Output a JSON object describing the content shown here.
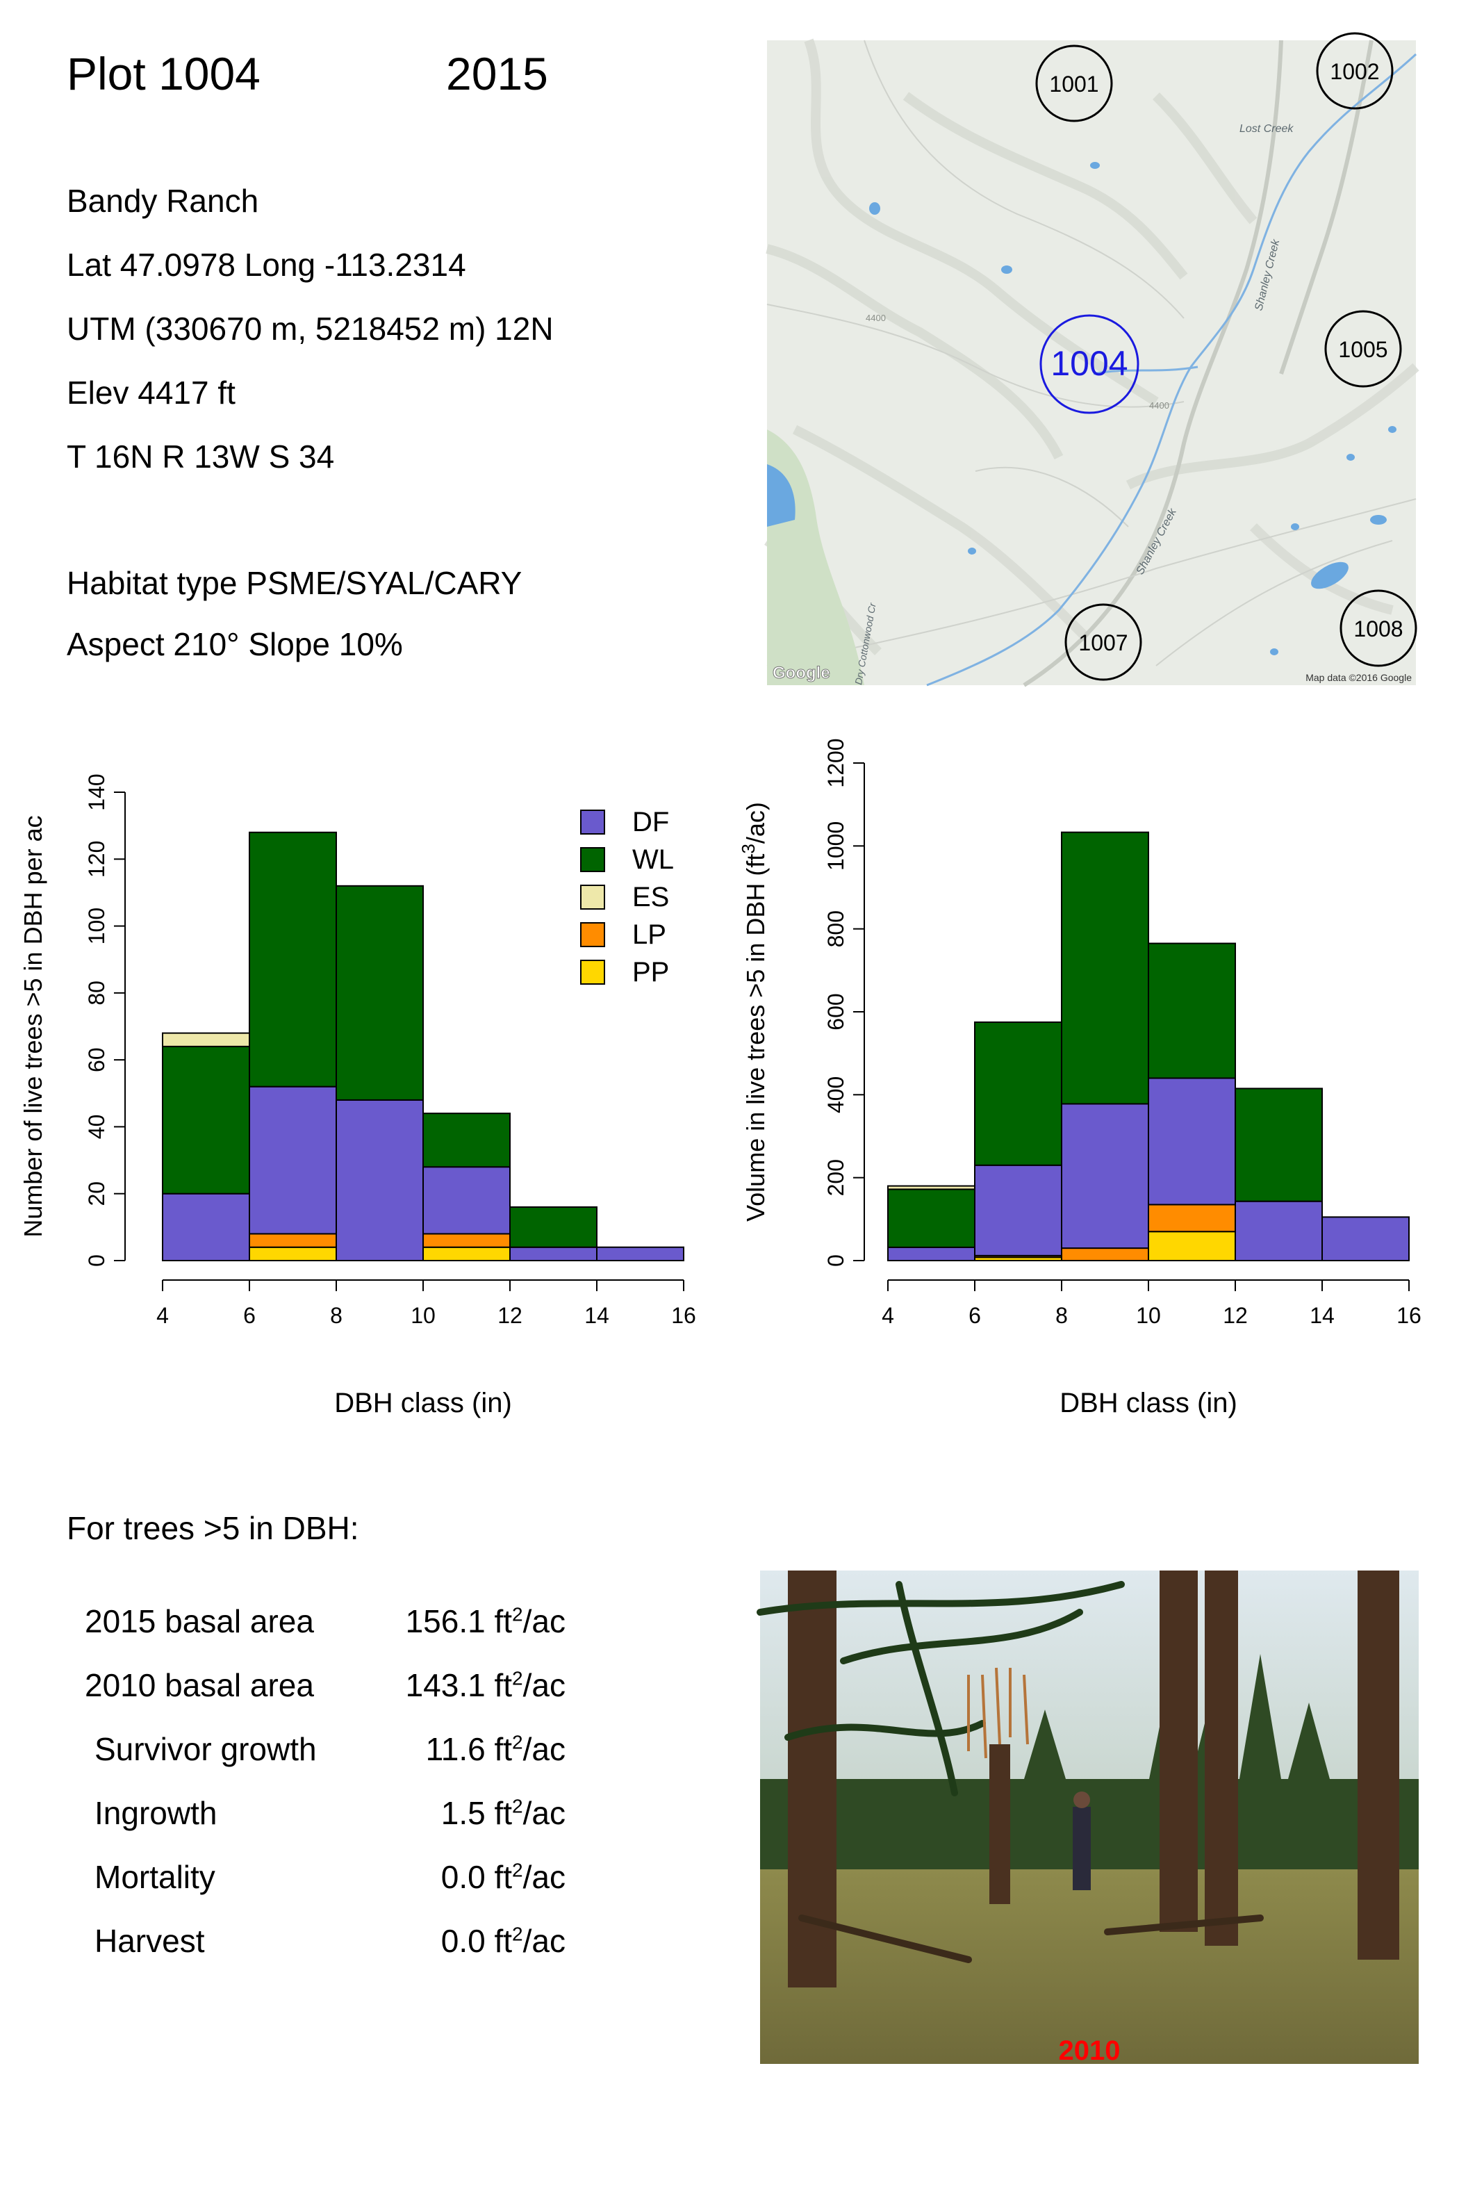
{
  "header": {
    "plot_label": "Plot 1004",
    "year": "2015"
  },
  "site": {
    "ranch": "Bandy Ranch",
    "latlong": "Lat 47.0978 Long -113.2314",
    "utm": "UTM (330670 m, 5218452 m)  12N",
    "elev": "Elev 4417 ft",
    "trs": "T 16N  R 13W  S 34",
    "habitat": "Habitat type PSME/SYAL/CARY",
    "aspect": "Aspect 210° Slope 10%"
  },
  "map": {
    "plots": [
      "1001",
      "1002",
      "1004",
      "1005",
      "1007",
      "1008"
    ],
    "current_plot": "1004",
    "creek_labels": [
      "Lost Creek",
      "Shanley Creek",
      "Shanley Creek",
      "Dry Cottonwood Cr"
    ],
    "contour_labels": [
      "4400",
      "4400"
    ],
    "google_logo": "Google",
    "attribution": "Map data ©2016 Google",
    "colors": {
      "terrain": "#e9ece6",
      "water": "#6aa8e0",
      "forest": "#cfe0c6",
      "plot_current": "#1a1adf"
    }
  },
  "chart_data": [
    {
      "type": "bar",
      "stacked": true,
      "xlabel": "DBH class (in)",
      "ylabel": "Number of live trees >5 in DBH per ac",
      "xlim": [
        4,
        16
      ],
      "ylim": [
        0,
        140
      ],
      "x_ticks": [
        "4",
        "6",
        "8",
        "10",
        "12",
        "14",
        "16"
      ],
      "y_ticks": [
        "0",
        "20",
        "40",
        "60",
        "80",
        "100",
        "120",
        "140"
      ],
      "bins": [
        [
          4,
          6
        ],
        [
          6,
          8
        ],
        [
          8,
          10
        ],
        [
          10,
          12
        ],
        [
          12,
          14
        ],
        [
          14,
          16
        ]
      ],
      "series": [
        {
          "name": "PP",
          "color": "#ffd700",
          "values": [
            0,
            4,
            0,
            4,
            0,
            0
          ]
        },
        {
          "name": "LP",
          "color": "#ff8c00",
          "values": [
            0,
            4,
            0,
            4,
            0,
            0
          ]
        },
        {
          "name": "DF",
          "color": "#6a5acd",
          "values": [
            20,
            44,
            48,
            20,
            4,
            4
          ]
        },
        {
          "name": "WL",
          "color": "#006400",
          "values": [
            44,
            76,
            64,
            16,
            12,
            0
          ]
        },
        {
          "name": "ES",
          "color": "#eee8aa",
          "values": [
            4,
            0,
            0,
            0,
            0,
            0
          ]
        }
      ],
      "legend": [
        "DF",
        "WL",
        "ES",
        "LP",
        "PP"
      ],
      "legend_position": "top-right"
    },
    {
      "type": "bar",
      "stacked": true,
      "xlabel": "DBH class (in)",
      "ylabel_main": "Volume in live trees >5 in DBH (ft",
      "ylabel_sup": "3",
      "ylabel_end": "/ac)",
      "xlim": [
        4,
        16
      ],
      "ylim": [
        0,
        1200
      ],
      "x_ticks": [
        "4",
        "6",
        "8",
        "10",
        "12",
        "14",
        "16"
      ],
      "y_ticks": [
        "0",
        "200",
        "400",
        "600",
        "800",
        "1000",
        "1200"
      ],
      "bins": [
        [
          4,
          6
        ],
        [
          6,
          8
        ],
        [
          8,
          10
        ],
        [
          10,
          12
        ],
        [
          12,
          14
        ],
        [
          14,
          16
        ]
      ],
      "series": [
        {
          "name": "PP",
          "color": "#ffd700",
          "values": [
            0,
            8,
            0,
            70,
            0,
            0
          ]
        },
        {
          "name": "LP",
          "color": "#ff8c00",
          "values": [
            0,
            4,
            30,
            65,
            0,
            0
          ]
        },
        {
          "name": "DF",
          "color": "#6a5acd",
          "values": [
            32,
            218,
            348,
            305,
            143,
            105
          ]
        },
        {
          "name": "WL",
          "color": "#006400",
          "values": [
            140,
            345,
            655,
            325,
            272,
            0
          ]
        },
        {
          "name": "ES",
          "color": "#eee8aa",
          "values": [
            8,
            0,
            0,
            0,
            0,
            0
          ]
        }
      ]
    }
  ],
  "basal": {
    "heading": "For trees >5 in DBH:",
    "unit_base": "ft",
    "unit_sup": "2",
    "unit_end": "/ac",
    "rows": [
      {
        "label": "2015 basal area",
        "value": "156.1"
      },
      {
        "label": "2010 basal area",
        "value": "143.1"
      },
      {
        "label": "Survivor growth",
        "value": "11.6"
      },
      {
        "label": "Ingrowth",
        "value": "1.5"
      },
      {
        "label": "Mortality",
        "value": "0.0"
      },
      {
        "label": "Harvest",
        "value": "0.0"
      }
    ]
  },
  "photo": {
    "year_label": "2010",
    "colors": {
      "label": "#ff0000"
    }
  }
}
